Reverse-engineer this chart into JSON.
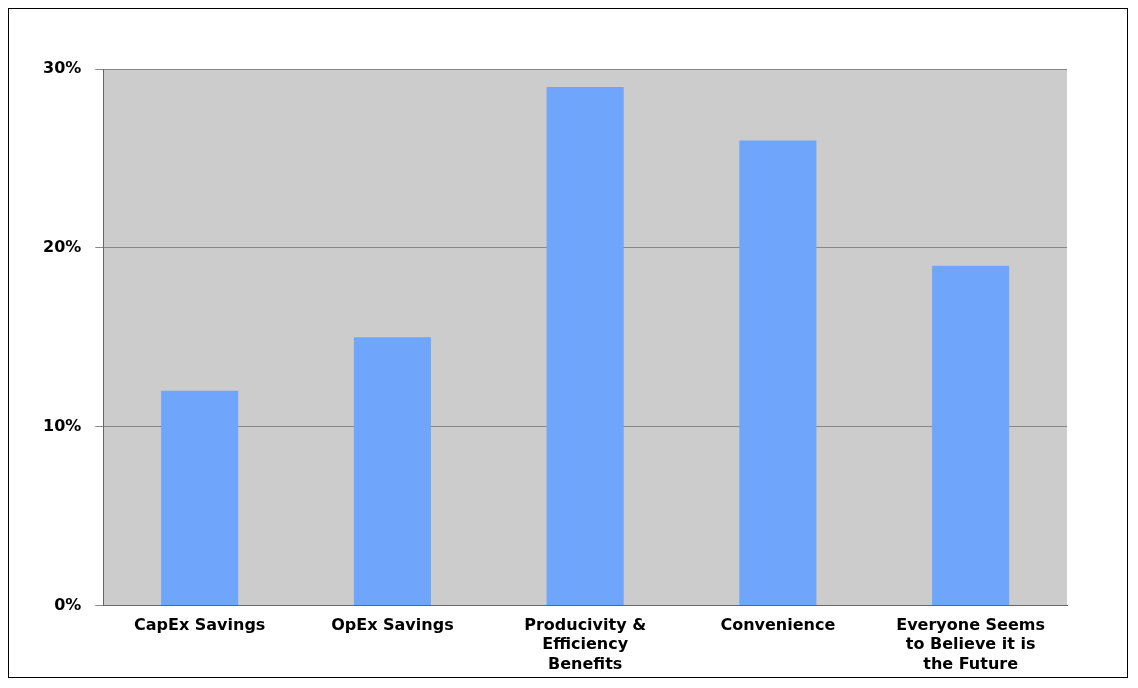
{
  "chart_data": {
    "type": "bar",
    "categories": [
      "CapEx Savings",
      "OpEx Savings",
      "Producivity & Efficiency Benefits",
      "Convenience",
      "Everyone Seems to Believe it is the Future"
    ],
    "values": [
      12,
      15,
      29,
      26,
      19
    ],
    "color": "#6fa5fb",
    "ylim": [
      0,
      30
    ],
    "yticks": [
      {
        "value": 0,
        "label": "0%"
      },
      {
        "value": 10,
        "label": "10%"
      },
      {
        "value": 20,
        "label": "20%"
      },
      {
        "value": 30,
        "label": "30%"
      }
    ],
    "grid": "y"
  }
}
